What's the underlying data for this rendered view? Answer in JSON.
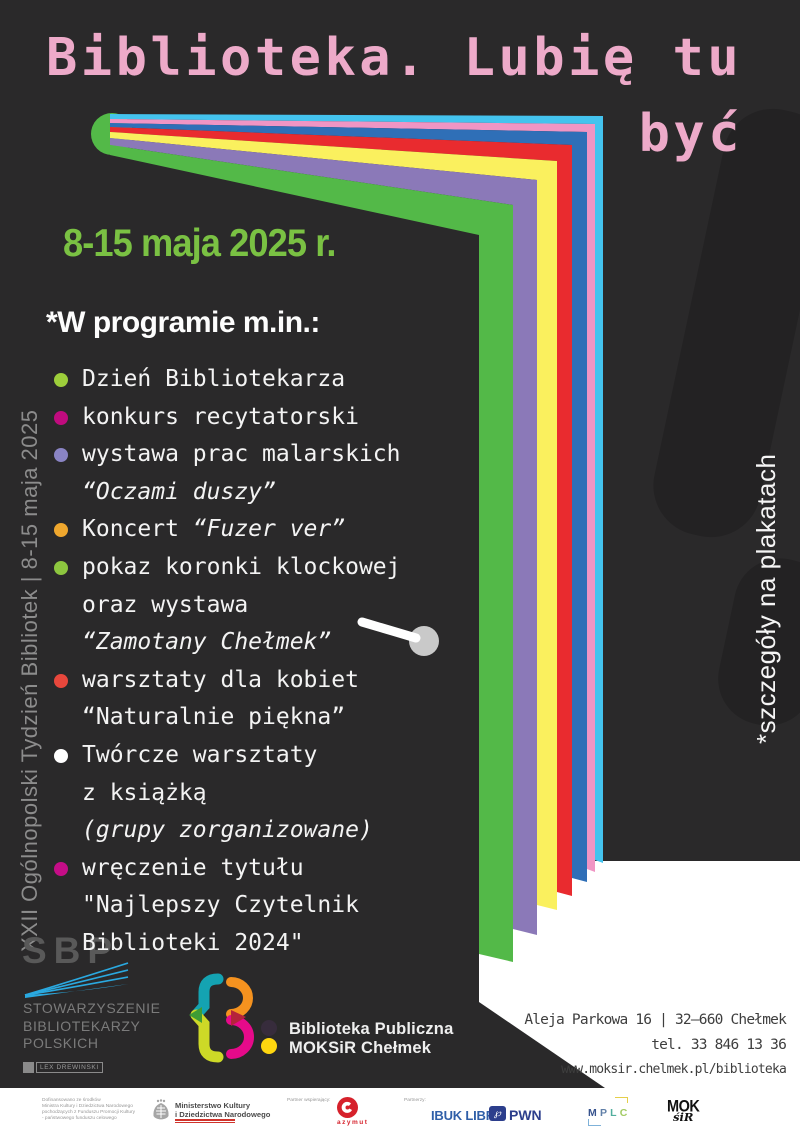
{
  "poster": {
    "title_line1": "Biblioteka. Lubię tu",
    "title_line2": "być",
    "date": "8-15 maja 2025 r.",
    "program_heading": "*W programie m.in.:",
    "program_lines": [
      {
        "t": "Dzień Bibliotekarza",
        "bullet": "#9dce3b"
      },
      {
        "t": "konkurs recytatorski",
        "bullet": "#c00b7e"
      },
      {
        "t": "wystawa prac malarskich",
        "bullet": "#8a84c4"
      },
      {
        "i": "“Oczami duszy”"
      },
      {
        "t": "Koncert ",
        "i": "“Fuzer ver”",
        "bullet": "#efa72e"
      },
      {
        "t": "pokaz koronki klockowej",
        "bullet": "#8dc63f"
      },
      {
        "t": "oraz wystawa"
      },
      {
        "i": "“Zamotany Chełmek”"
      },
      {
        "t": "warsztaty dla kobiet",
        "bullet": "#e8473c"
      },
      {
        "t": "“Naturalnie piękna”"
      },
      {
        "t": "Twórcze warsztaty",
        "bullet": "#ffffff"
      },
      {
        "t": "z książką"
      },
      {
        "i": "(grupy zorganizowane)"
      },
      {
        "t": "wręczenie tytułu",
        "bullet": "#c50d87"
      },
      {
        "t": "\"Najlepszy Czytelnik"
      },
      {
        "t": "Biblioteki 2024\""
      }
    ],
    "left_vertical": "XXII Ogólnopolski Tydzień Bibliotek | 8-15 maja 2025",
    "right_vertical": "*szczegóły na plakatach"
  },
  "palette": {
    "background": "#2a292a",
    "title_pink": "#edaac9",
    "date_green": "#7ac143",
    "page_green": "#53b948",
    "page_purple": "#8b79b8",
    "page_yellow": "#faf05e",
    "page_red": "#e92b2f",
    "page_blue": "#2f6fb7",
    "page_pink": "#f095c4",
    "page_cyan": "#44c3ee"
  },
  "sbp": {
    "acronym": "SBP",
    "org_lines": [
      "STOWARZYSZENIE",
      "BIBLIOTEKARZY",
      "POLSKICH"
    ],
    "credit": "LEX DREWINSKI"
  },
  "library_logo": {
    "line1": "Biblioteka Publiczna",
    "line2": "MOKSiR Chełmek"
  },
  "address": {
    "line1": "Aleja Parkowa 16 | 32—660 Chełmek",
    "line2": "tel. 33 846 13 36",
    "line3": "www.moksir.chelmek.pl/biblioteka"
  },
  "footer": {
    "funding_lines": [
      "Dofinansowano ze środków",
      "Ministra Kultury i Dziedzictwa Narodowego",
      "pochodzących z Funduszu Promocji Kultury",
      "- państwowego funduszu celowego"
    ],
    "ministry_line1": "Ministerstwo Kultury",
    "ministry_line2": "i Dziedzictwa Narodowego",
    "partner_support_label": "Partner wspierający:",
    "azymut_label": "azymut",
    "partners_label": "Partnerzy:",
    "ibuk_label": "IBUK LIBRA",
    "pwn_glyph": "℘",
    "pwn_label": "PWN",
    "mplc_letters": [
      "M",
      "P",
      "L",
      "C"
    ],
    "mplc_colors": [
      "#37538e",
      "#607fa8",
      "#52ae9e",
      "#a3cb64"
    ],
    "mok_line1": "MOK",
    "mok_line2": "śiR"
  }
}
